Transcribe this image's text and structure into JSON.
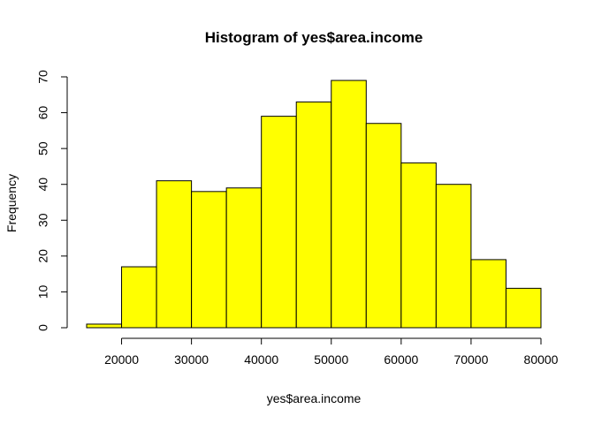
{
  "chart_data": {
    "type": "bar",
    "title": "Histogram of yes$area.income",
    "xlabel": "yes$area.income",
    "ylabel": "Frequency",
    "bin_edges": [
      15000,
      20000,
      25000,
      30000,
      35000,
      40000,
      45000,
      50000,
      55000,
      60000,
      65000,
      70000,
      75000,
      80000
    ],
    "values": [
      1,
      17,
      41,
      38,
      39,
      59,
      63,
      69,
      57,
      46,
      40,
      19,
      11
    ],
    "x_ticks": [
      20000,
      30000,
      40000,
      50000,
      60000,
      70000,
      80000
    ],
    "y_ticks": [
      0,
      10,
      20,
      30,
      40,
      50,
      60,
      70
    ],
    "ylim": [
      0,
      70
    ],
    "bar_color": "#ffff00",
    "grid": false
  }
}
